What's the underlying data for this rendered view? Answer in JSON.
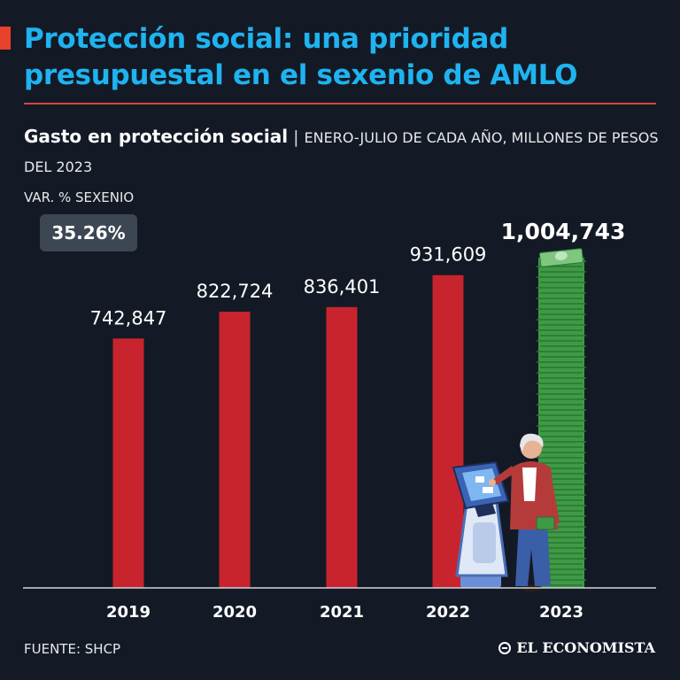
{
  "header": {
    "title": "Protección social: una prioridad presupuestal en el sexenio de AMLO"
  },
  "subtitle": {
    "strong": "Gasto en protección social",
    "separator": "|",
    "rest": "ENERO-JULIO DE CADA AÑO, MILLONES DE PESOS DEL 2023"
  },
  "variation": {
    "label": "VAR. % SEXENIO",
    "value": "35.26%"
  },
  "footer": {
    "source": "FUENTE: SHCP",
    "brand": "EL ECONOMISTA"
  },
  "colors": {
    "title": "#1fb3f0",
    "bar": "#c8242d",
    "money": "#3f9a45",
    "background": "#131a26"
  },
  "chart_data": {
    "type": "bar",
    "title": "Gasto en protección social",
    "xlabel": "",
    "ylabel": "Millones de pesos del 2023",
    "categories": [
      "2019",
      "2020",
      "2021",
      "2022",
      "2023"
    ],
    "values": [
      742847,
      822724,
      836401,
      931609,
      1004743
    ],
    "value_labels": [
      "742,847",
      "822,724",
      "836,401",
      "931,609",
      "1,004,743"
    ],
    "highlight_index": 4,
    "ylim": [
      0,
      1004743
    ],
    "grid": false
  }
}
